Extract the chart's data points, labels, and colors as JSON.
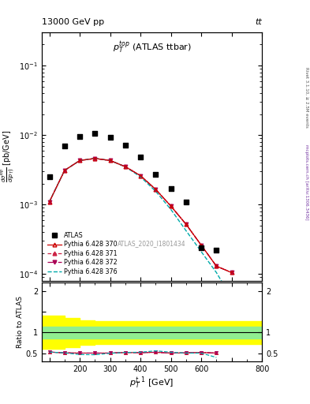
{
  "title_left": "13000 GeV pp",
  "title_right": "tt",
  "plot_title": "$p_T^{top}$ (ATLAS ttbar)",
  "ylabel_main": "$\\frac{d\\sigma^{top}}{d(p_T)}$ [pb/GeV]",
  "ylabel_ratio": "Ratio to ATLAS",
  "xlabel": "$p_T^{t,1}$ [GeV]",
  "watermark": "ATLAS_2020_I1801434",
  "right_label_top": "Rivet 3.1.10, ≥ 2.5M events",
  "right_label_bot": "mcplots.cern.ch [arXiv:1306.3436]",
  "atlas_pt": [
    100,
    150,
    200,
    250,
    300,
    350,
    400,
    450,
    500,
    550,
    600,
    650
  ],
  "atlas_val": [
    0.0025,
    0.007,
    0.0095,
    0.0105,
    0.0092,
    0.0072,
    0.0048,
    0.0027,
    0.0017,
    0.0011,
    0.00024,
    0.00022
  ],
  "pythia_pt": [
    100,
    150,
    200,
    250,
    300,
    350,
    400,
    450,
    500,
    550,
    600,
    650,
    700
  ],
  "p370_val": [
    0.0011,
    0.0031,
    0.0043,
    0.0046,
    0.0043,
    0.0035,
    0.0026,
    0.00165,
    0.00095,
    0.00052,
    0.00026,
    0.00013,
    0.000105
  ],
  "p371_val": [
    0.0011,
    0.0031,
    0.0043,
    0.0046,
    0.0043,
    0.0035,
    0.0026,
    0.00165,
    0.00095,
    0.00052,
    0.00026,
    0.00013,
    0.000105
  ],
  "p372_val": [
    0.0011,
    0.0031,
    0.0043,
    0.0046,
    0.0043,
    0.0035,
    0.0026,
    0.00165,
    0.00095,
    0.00052,
    0.00026,
    0.00013,
    0.000105
  ],
  "p376_val": [
    0.0011,
    0.0031,
    0.0043,
    0.0046,
    0.0043,
    0.0035,
    0.0025,
    0.00155,
    0.00085,
    0.00042,
    0.00021,
    0.000105,
    4.5e-05
  ],
  "ratio_pt": [
    100,
    150,
    200,
    250,
    300,
    350,
    400,
    450,
    500,
    550,
    600,
    650
  ],
  "ratio_370": [
    0.53,
    0.51,
    0.505,
    0.505,
    0.505,
    0.52,
    0.515,
    0.525,
    0.505,
    0.51,
    0.52,
    0.505
  ],
  "ratio_371": [
    0.53,
    0.51,
    0.505,
    0.505,
    0.505,
    0.52,
    0.515,
    0.525,
    0.505,
    0.51,
    0.52,
    0.505
  ],
  "ratio_372": [
    0.53,
    0.51,
    0.505,
    0.505,
    0.505,
    0.52,
    0.515,
    0.525,
    0.505,
    0.51,
    0.52,
    0.505
  ],
  "ratio_376": [
    0.53,
    0.51,
    0.47,
    0.465,
    0.5,
    0.52,
    0.525,
    0.56,
    0.525,
    0.505,
    0.505,
    0.4
  ],
  "band_x": [
    75,
    100,
    150,
    200,
    250,
    300,
    350,
    400,
    450,
    500,
    550,
    600,
    650,
    800
  ],
  "green_lo": [
    0.85,
    0.85,
    0.85,
    0.85,
    0.85,
    0.85,
    0.85,
    0.85,
    0.85,
    0.85,
    0.85,
    0.85,
    0.85,
    0.85
  ],
  "green_hi": [
    1.15,
    1.15,
    1.15,
    1.15,
    1.15,
    1.15,
    1.15,
    1.15,
    1.15,
    1.15,
    1.15,
    1.15,
    1.15,
    1.15
  ],
  "yellow_lo": [
    0.6,
    0.6,
    0.65,
    0.7,
    0.72,
    0.72,
    0.72,
    0.72,
    0.72,
    0.72,
    0.72,
    0.72,
    0.72,
    0.72
  ],
  "yellow_hi": [
    1.4,
    1.4,
    1.35,
    1.3,
    1.28,
    1.28,
    1.28,
    1.28,
    1.28,
    1.28,
    1.28,
    1.28,
    1.28,
    1.28
  ],
  "color_370": "#cc0000",
  "color_371": "#cc2244",
  "color_372": "#aa0055",
  "color_376": "#00aaaa",
  "xlim": [
    75,
    800
  ],
  "ylim_main": [
    8e-05,
    0.3
  ],
  "ylim_ratio": [
    0.3,
    2.2
  ],
  "xticks": [
    100,
    200,
    300,
    400,
    500,
    600,
    700,
    800
  ]
}
